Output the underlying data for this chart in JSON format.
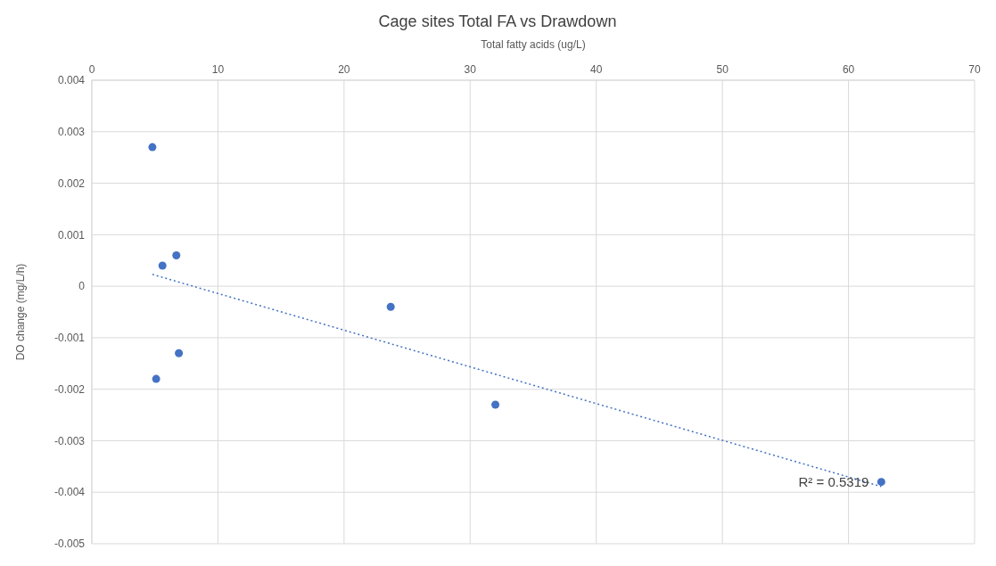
{
  "chart_data": {
    "type": "scatter",
    "title": "Cage sites Total FA vs Drawdown",
    "xlabel": "Total fatty acids (ug/L)",
    "ylabel": "DO change (mg/L/h)",
    "xlim": [
      0,
      70
    ],
    "xticks": [
      0,
      10,
      20,
      30,
      40,
      50,
      60,
      70
    ],
    "ylim": [
      -0.005,
      0.004
    ],
    "yticks": [
      -0.005,
      -0.004,
      -0.003,
      -0.002,
      -0.001,
      0,
      0.001,
      0.002,
      0.003,
      0.004
    ],
    "grid": true,
    "series": [
      {
        "marker": "circle",
        "color": "#4472c4",
        "x": [
          4.8,
          5.6,
          6.7,
          5.1,
          6.9,
          23.7,
          32.0,
          62.6
        ],
        "values": [
          0.0027,
          0.0004,
          0.0006,
          -0.0018,
          -0.0013,
          -0.0004,
          -0.0023,
          -0.0038
        ]
      },
      {
        "type": "line",
        "color": "#4472c4",
        "line_style": "dotted",
        "x": [
          4.8,
          62.6
        ],
        "values": [
          0.00023,
          -0.00389
        ]
      }
    ],
    "annotations": [
      {
        "text": "R² = 0.5319",
        "x": 62.6,
        "y": -0.0038
      }
    ]
  }
}
